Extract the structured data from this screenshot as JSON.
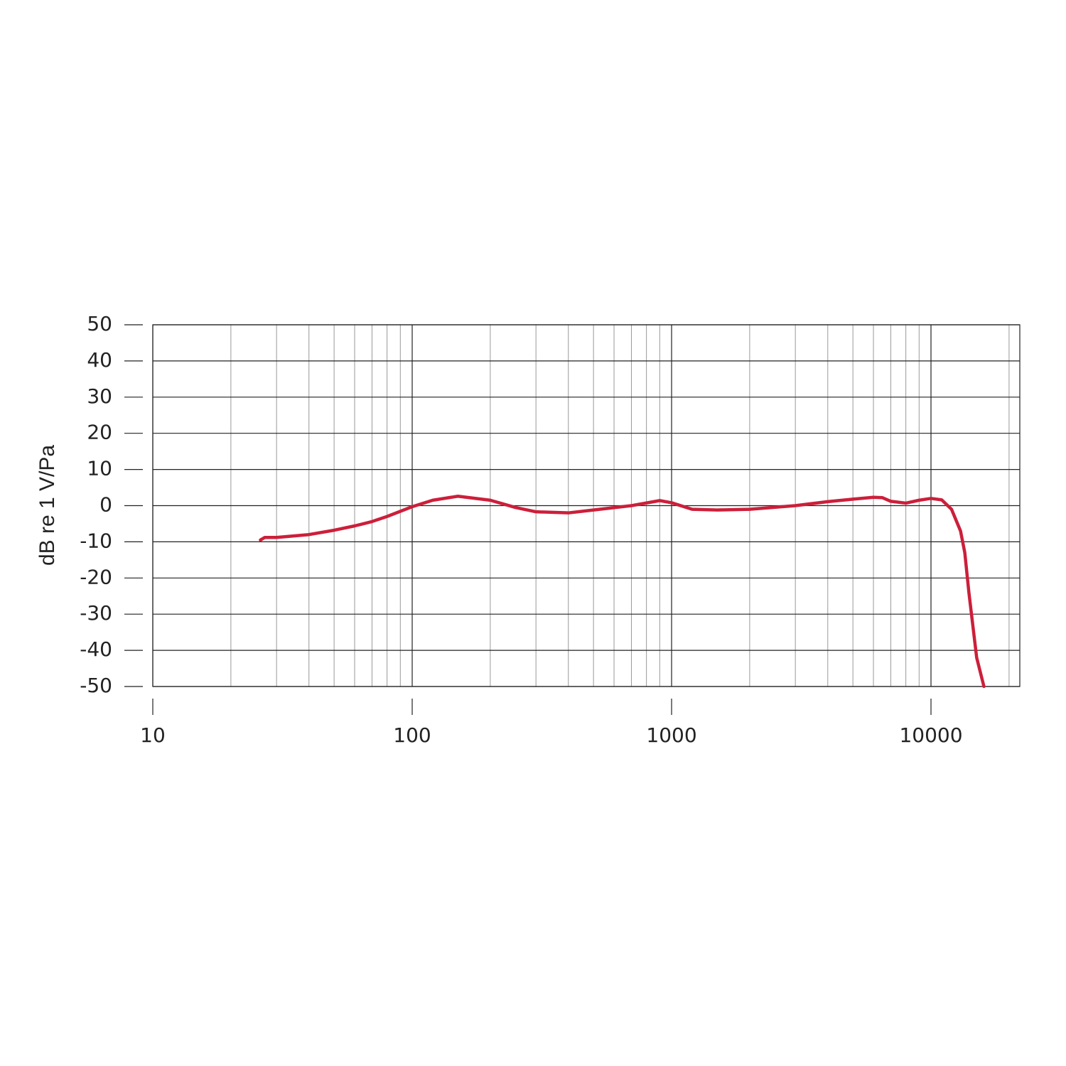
{
  "chart_data": {
    "type": "line",
    "y_label": "dB re 1 V/Pa",
    "x": [
      26,
      27,
      30,
      40,
      50,
      60,
      70,
      80,
      100,
      120,
      150,
      200,
      250,
      300,
      400,
      500,
      700,
      900,
      1000,
      1200,
      1500,
      2000,
      3000,
      4000,
      5000,
      6000,
      6500,
      7000,
      8000,
      9000,
      10000,
      11000,
      12000,
      13000,
      13500,
      14000,
      15000,
      16000
    ],
    "series": [
      {
        "color": "#cc1f3a",
        "values": [
          -9.5,
          -8.8,
          -8.8,
          -8,
          -6.8,
          -5.6,
          -4.4,
          -3,
          -0.3,
          1.5,
          2.6,
          1.5,
          -0.5,
          -1.7,
          -2,
          -1.2,
          0,
          1.4,
          0.8,
          -1,
          -1.2,
          -1,
          0,
          1.1,
          1.8,
          2.3,
          2.2,
          1.2,
          0.7,
          1.5,
          2,
          1.6,
          -1,
          -7,
          -13,
          -24,
          -42,
          -50
        ]
      }
    ],
    "xlog": true,
    "xlim": [
      10,
      22000
    ],
    "xticks": [
      10,
      100,
      1000,
      10000
    ],
    "ylim": [
      -50,
      50
    ],
    "yticks": [
      -50,
      -40,
      -30,
      -20,
      -10,
      0,
      10,
      20,
      30,
      40,
      50
    ],
    "grid": true,
    "minor_grid": true
  }
}
